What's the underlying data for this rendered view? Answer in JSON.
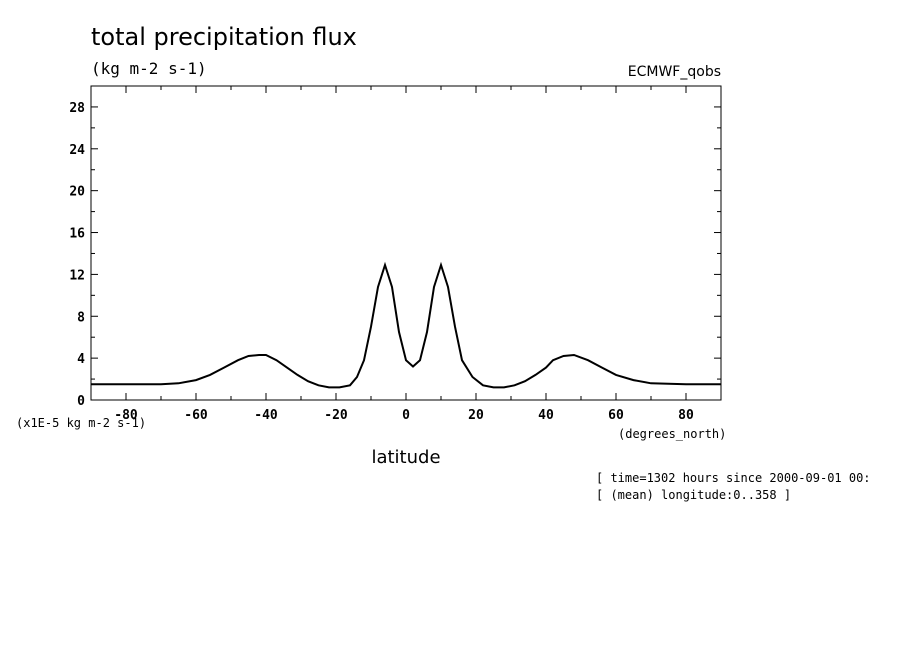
{
  "chart_data": {
    "type": "line",
    "title": "total precipitation flux",
    "units_label": "(kg m-2 s-1)",
    "dataset_label": "ECMWF_qobs",
    "xlabel": "latitude",
    "x_units_label": "(degrees_north)",
    "y_scale_label": "(x1E-5 kg m-2 s-1)",
    "xlim": [
      -90,
      90
    ],
    "ylim": [
      0,
      30
    ],
    "x_ticks": [
      -80,
      -60,
      -40,
      -20,
      0,
      20,
      40,
      60,
      80
    ],
    "x_tick_labels": [
      "-80",
      "-60",
      "-40",
      "-20",
      "0",
      "20",
      "40",
      "60",
      "80"
    ],
    "y_ticks": [
      0,
      4,
      8,
      12,
      16,
      20,
      24,
      28
    ],
    "y_tick_labels": [
      "0",
      "4",
      "8",
      "12",
      "16",
      "20",
      "24",
      "28"
    ],
    "grid": false,
    "series": [
      {
        "x": [
          -90,
          -80,
          -70,
          -65,
          -60,
          -56,
          -52,
          -48,
          -45,
          -42,
          -40,
          -37,
          -34,
          -31,
          -28,
          -25,
          -22,
          -19,
          -16,
          -14,
          -12,
          -10,
          -8,
          -6,
          -4,
          -2,
          0,
          2,
          4,
          6,
          8,
          10,
          12,
          14,
          16,
          19,
          22,
          25,
          28,
          31,
          34,
          37,
          40,
          42,
          45,
          48,
          52,
          56,
          60,
          65,
          70,
          80,
          90
        ],
        "y": [
          1.5,
          1.5,
          1.5,
          1.6,
          1.9,
          2.4,
          3.1,
          3.8,
          4.2,
          4.3,
          4.3,
          3.8,
          3.1,
          2.4,
          1.8,
          1.4,
          1.2,
          1.2,
          1.4,
          2.2,
          3.8,
          7.0,
          10.8,
          12.9,
          10.8,
          6.5,
          3.8,
          3.2,
          3.8,
          6.5,
          10.8,
          12.9,
          10.8,
          7.0,
          3.8,
          2.2,
          1.4,
          1.2,
          1.2,
          1.4,
          1.8,
          2.4,
          3.1,
          3.8,
          4.2,
          4.3,
          3.8,
          3.1,
          2.4,
          1.9,
          1.6,
          1.5,
          1.5
        ]
      }
    ]
  },
  "annotations": {
    "time_line": "[ time=1302 hours since 2000-09-01 00:",
    "longitude_line": "[ (mean) longitude:0..358 ]"
  }
}
